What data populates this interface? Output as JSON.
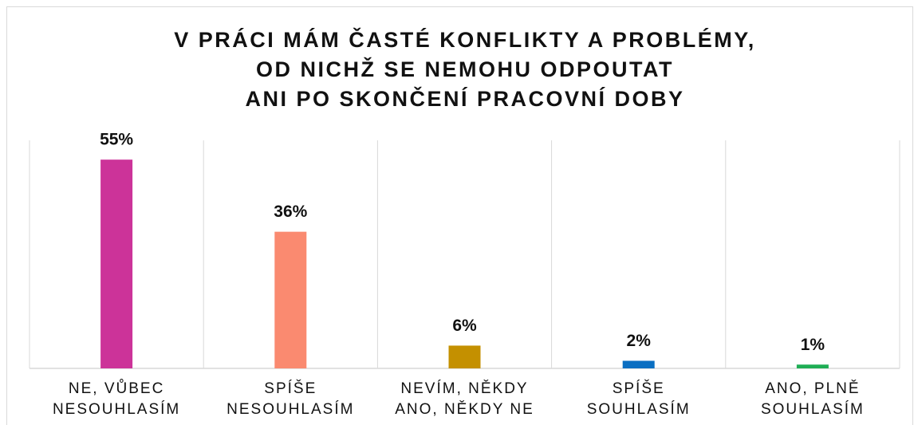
{
  "chart_data": {
    "type": "bar",
    "title": [
      "V PRÁCI MÁM ČASTÉ KONFLIKTY A PROBLÉMY,",
      "OD NICHŽ SE NEMOHU ODPOUTAT",
      "ANI PO SKONČENÍ PRACOVNÍ DOBY"
    ],
    "categories": [
      [
        "NE, VŮBEC",
        "NESOUHLASÍM"
      ],
      [
        "SPÍŠE",
        "NESOUHLASÍM"
      ],
      [
        "NEVÍM, NĚKDY",
        "ANO, NĚKDY NE"
      ],
      [
        "SPÍŠE",
        "SOUHLASÍM"
      ],
      [
        "ANO, PLNĚ",
        "SOUHLASÍM"
      ]
    ],
    "values": [
      55,
      36,
      6,
      2,
      1
    ],
    "value_labels": [
      "55%",
      "36%",
      "6%",
      "2%",
      "1%"
    ],
    "colors": [
      "#cc3399",
      "#fa8a70",
      "#c49000",
      "#0a6fc2",
      "#1fae55"
    ]
  }
}
